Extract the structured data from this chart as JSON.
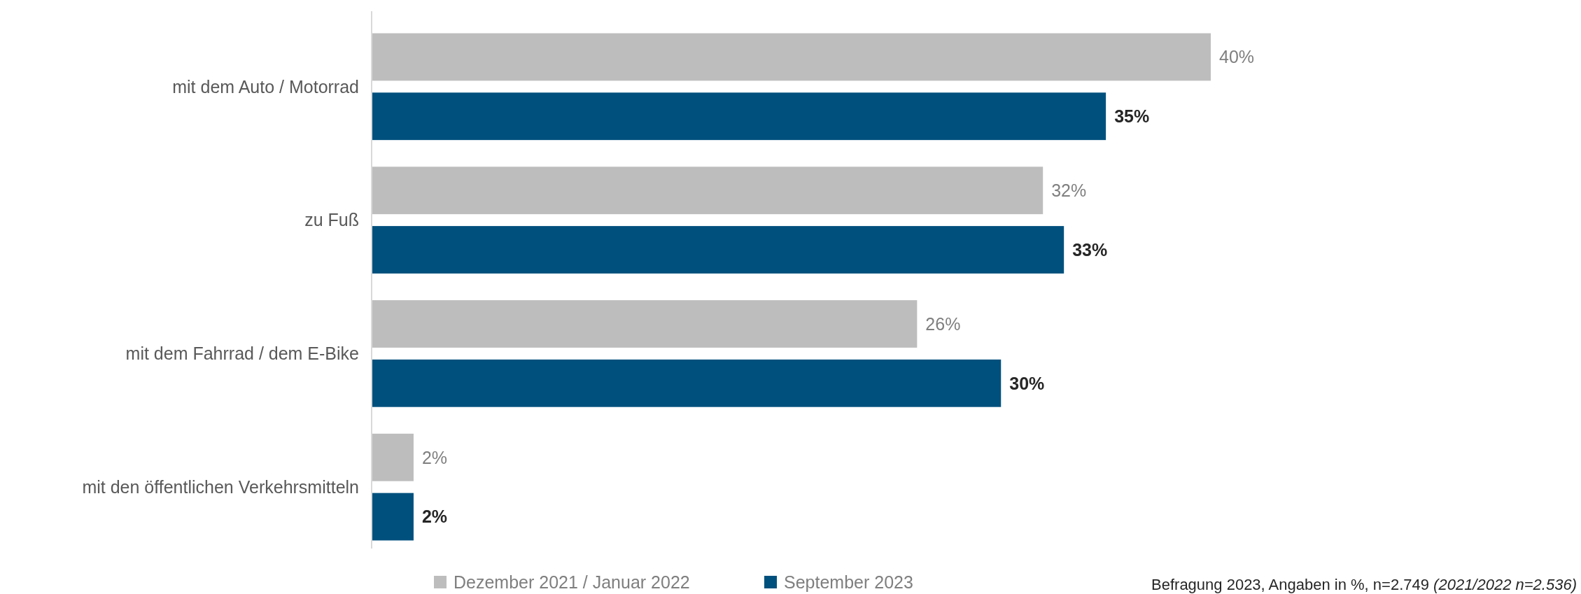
{
  "chart_data": {
    "type": "bar",
    "orientation": "horizontal",
    "categories": [
      "mit dem Auto / Motorrad",
      "zu Fuß",
      "mit dem Fahrrad / dem E-Bike",
      "mit den öffentlichen Verkehrsmitteln"
    ],
    "series": [
      {
        "name": "Dezember 2021 / Januar 2022",
        "color": "#bdbdbd",
        "values": [
          40,
          32,
          26,
          2
        ],
        "value_labels": [
          "40%",
          "32%",
          "26%",
          "2%"
        ]
      },
      {
        "name": "September 2023",
        "color": "#00507d",
        "values": [
          35,
          33,
          30,
          2
        ],
        "value_labels": [
          "35%",
          "33%",
          "30%",
          "2%"
        ]
      }
    ],
    "legend": "bottom",
    "annotations": [
      "Befragung 2023, Angaben in %, n=2.749",
      "(2021/2022 n=2.536)"
    ]
  }
}
